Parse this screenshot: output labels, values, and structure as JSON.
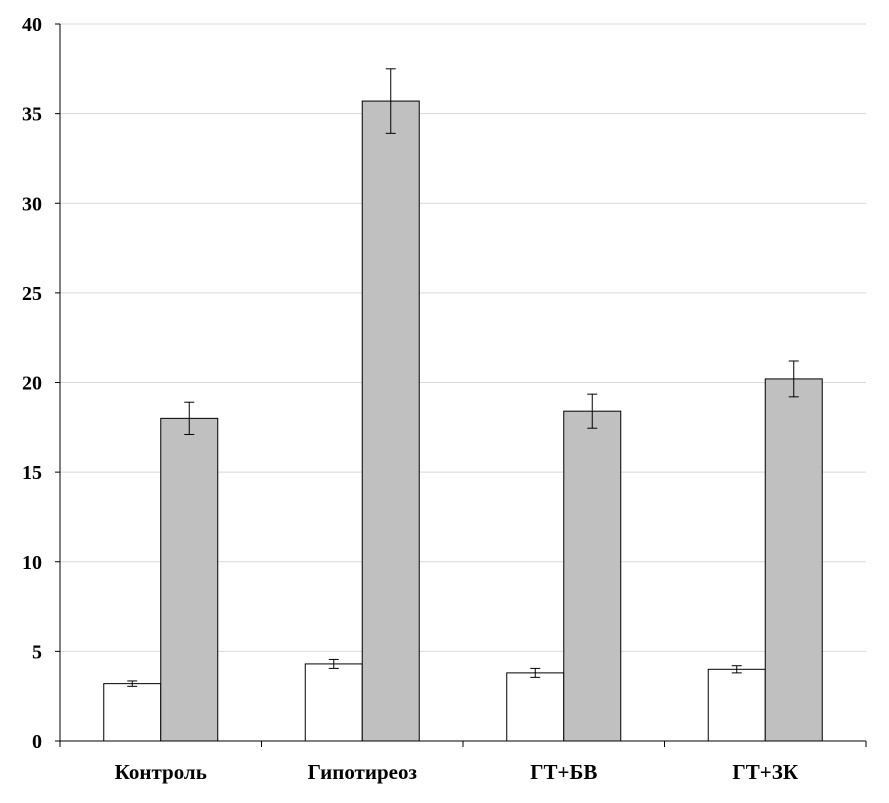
{
  "chart_data": {
    "type": "bar",
    "title": "",
    "xlabel": "",
    "ylabel": "",
    "categories": [
      "Контроль",
      "Гипотиреоз",
      "ГТ+БВ",
      "ГТ+ЗК"
    ],
    "series": [
      {
        "color": "#ffffff",
        "values": [
          3.2,
          4.3,
          3.8,
          4.0
        ],
        "errors": [
          0.15,
          0.25,
          0.25,
          0.2
        ]
      },
      {
        "color": "#c0c0c0",
        "values": [
          18.0,
          35.7,
          18.4,
          20.2
        ],
        "errors": [
          0.9,
          1.8,
          0.95,
          1.0
        ]
      }
    ],
    "ylim": [
      0,
      40
    ],
    "yticks": [
      0,
      5,
      10,
      15,
      20,
      25,
      30,
      35,
      40
    ],
    "ytick_labels": [
      "0",
      "5",
      "10",
      "15",
      "20",
      "25",
      "30",
      "35",
      "40"
    ],
    "grid": true,
    "grid_color": "#d9d9d9",
    "legend": "none"
  }
}
